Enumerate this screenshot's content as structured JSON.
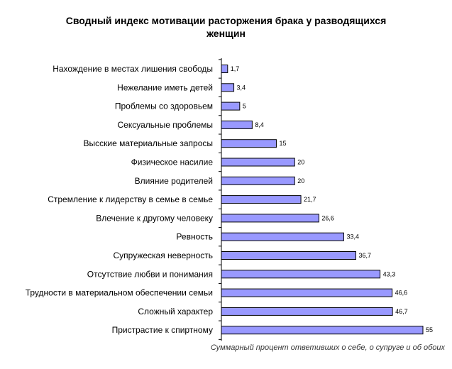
{
  "chart_data": {
    "type": "bar",
    "orientation": "horizontal",
    "title": "Сводный индекс мотивации расторжения брака у разводящихся\nженщин",
    "footnote": "Суммарный процент ответивших о себе, о супруге и об обоих",
    "categories": [
      "Нахождение в местах лишения свободы",
      "Нежелание иметь детей",
      "Проблемы со здоровьем",
      "Сексуальные проблемы",
      "Высские материальные запросы",
      "Физическое насилие",
      "Влияние родителей",
      "Стремление к лидерству в семье в семье",
      "Влечение к другому человеку",
      "Ревность",
      "Супружеская неверность",
      "Отсутствие любви и понимания",
      "Трудности в материальном обеспечении семьи",
      "Сложный  характер",
      "Пристрастие к спиртному"
    ],
    "values": [
      1.7,
      3.4,
      5,
      8.4,
      15,
      20,
      20,
      21.7,
      26.6,
      33.4,
      36.7,
      43.3,
      46.6,
      46.7,
      55
    ],
    "value_labels": [
      "1,7",
      "3,4",
      "5",
      "8,4",
      "15",
      "20",
      "20",
      "21,7",
      "26,6",
      "33,4",
      "36,7",
      "43,3",
      "46,6",
      "46,7",
      "55"
    ],
    "xlim": [
      0,
      60
    ],
    "grid": false,
    "colors": {
      "bar_fill": "#9999ff",
      "bar_stroke": "#000000",
      "axis": "#000000"
    }
  }
}
